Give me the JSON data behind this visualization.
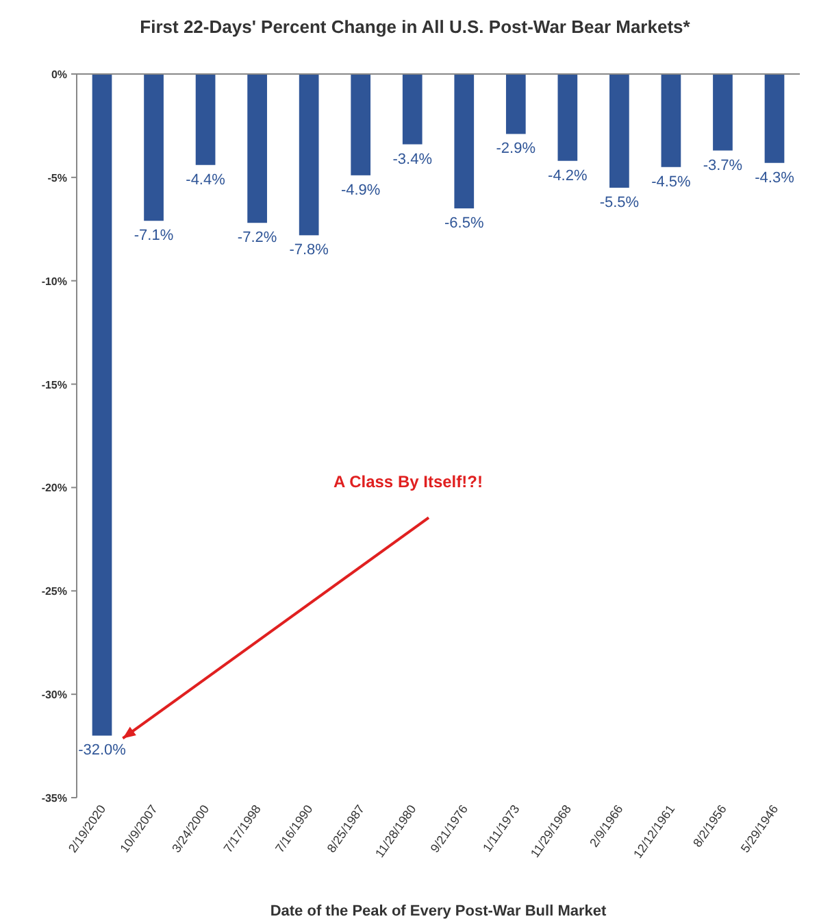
{
  "chart_data": {
    "type": "bar",
    "title": "First 22-Days' Percent Change in All U.S. Post-War Bear Markets*",
    "xlabel": "Date of the Peak of Every Post-War Bull Market",
    "categories": [
      "2/19/2020",
      "10/9/2007",
      "3/24/2000",
      "7/17/1998",
      "7/16/1990",
      "8/25/1987",
      "11/28/1980",
      "9/21/1976",
      "1/11/1973",
      "11/29/1968",
      "2/9/1966",
      "12/12/1961",
      "8/2/1956",
      "5/29/1946"
    ],
    "values": [
      -32.0,
      -7.1,
      -4.4,
      -7.2,
      -7.8,
      -4.9,
      -3.4,
      -6.5,
      -2.9,
      -4.2,
      -5.5,
      -4.5,
      -3.7,
      -4.3
    ],
    "value_labels": [
      "-32.0%",
      "-7.1%",
      "-4.4%",
      "-7.2%",
      "-7.8%",
      "-4.9%",
      "-3.4%",
      "-6.5%",
      "-2.9%",
      "-4.2%",
      "-5.5%",
      "-4.5%",
      "-3.7%",
      "-4.3%"
    ],
    "color": "#2f5597",
    "ylim": [
      -35,
      0
    ],
    "yticks": [
      {
        "value": 0,
        "label": "0%"
      },
      {
        "value": -5,
        "label": "-5%"
      },
      {
        "value": -10,
        "label": "-10%"
      },
      {
        "value": -15,
        "label": "-15%"
      },
      {
        "value": -20,
        "label": "-20%"
      },
      {
        "value": -25,
        "label": "-25%"
      },
      {
        "value": -30,
        "label": "-30%"
      },
      {
        "value": -35,
        "label": "-35%"
      }
    ],
    "grid": false,
    "annotations": [
      "A Class By Itself!?!"
    ]
  }
}
